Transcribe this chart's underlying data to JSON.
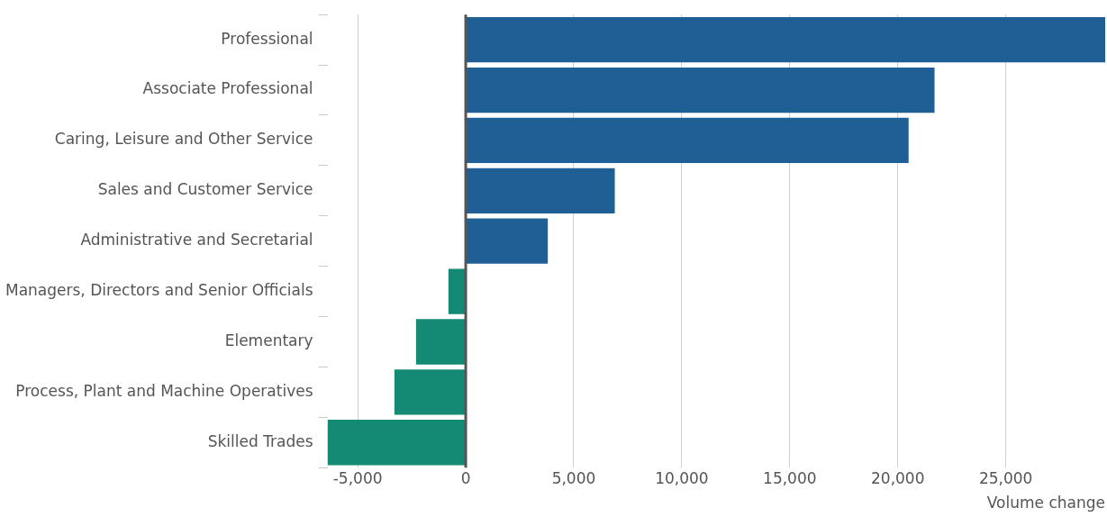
{
  "chart_data": {
    "type": "bar",
    "orientation": "horizontal",
    "xlabel": "Volume change",
    "categories": [
      "Professional",
      "Associate Professional",
      "Caring, Leisure and Other Service",
      "Sales and Customer Service",
      "Administrative and Secretarial",
      "Managers, Directors and Senior Officials",
      "Elementary",
      "Process, Plant and Machine Operatives",
      "Skilled Trades"
    ],
    "values": [
      29600,
      21700,
      20500,
      6900,
      3800,
      -800,
      -2300,
      -3300,
      -6400
    ],
    "colors": [
      "#1f5f95",
      "#1f5f95",
      "#1f5f95",
      "#1f5f95",
      "#1f5f95",
      "#148a75",
      "#148a75",
      "#148a75",
      "#148a75"
    ],
    "xlim": [
      -6400,
      29600
    ],
    "xticks": [
      {
        "value": -5000,
        "label": "-5,000"
      },
      0,
      {
        "value": 5000,
        "label": "5,000"
      },
      {
        "value": 10000,
        "label": "10,000"
      },
      {
        "value": 15000,
        "label": "15,000"
      },
      {
        "value": 20000,
        "label": "20,000"
      },
      {
        "value": 25000,
        "label": "25,000"
      }
    ],
    "ref_lines": [
      {
        "axis": "x",
        "value": 0,
        "color": "#555555"
      }
    ],
    "grid": "x",
    "legend": false
  }
}
